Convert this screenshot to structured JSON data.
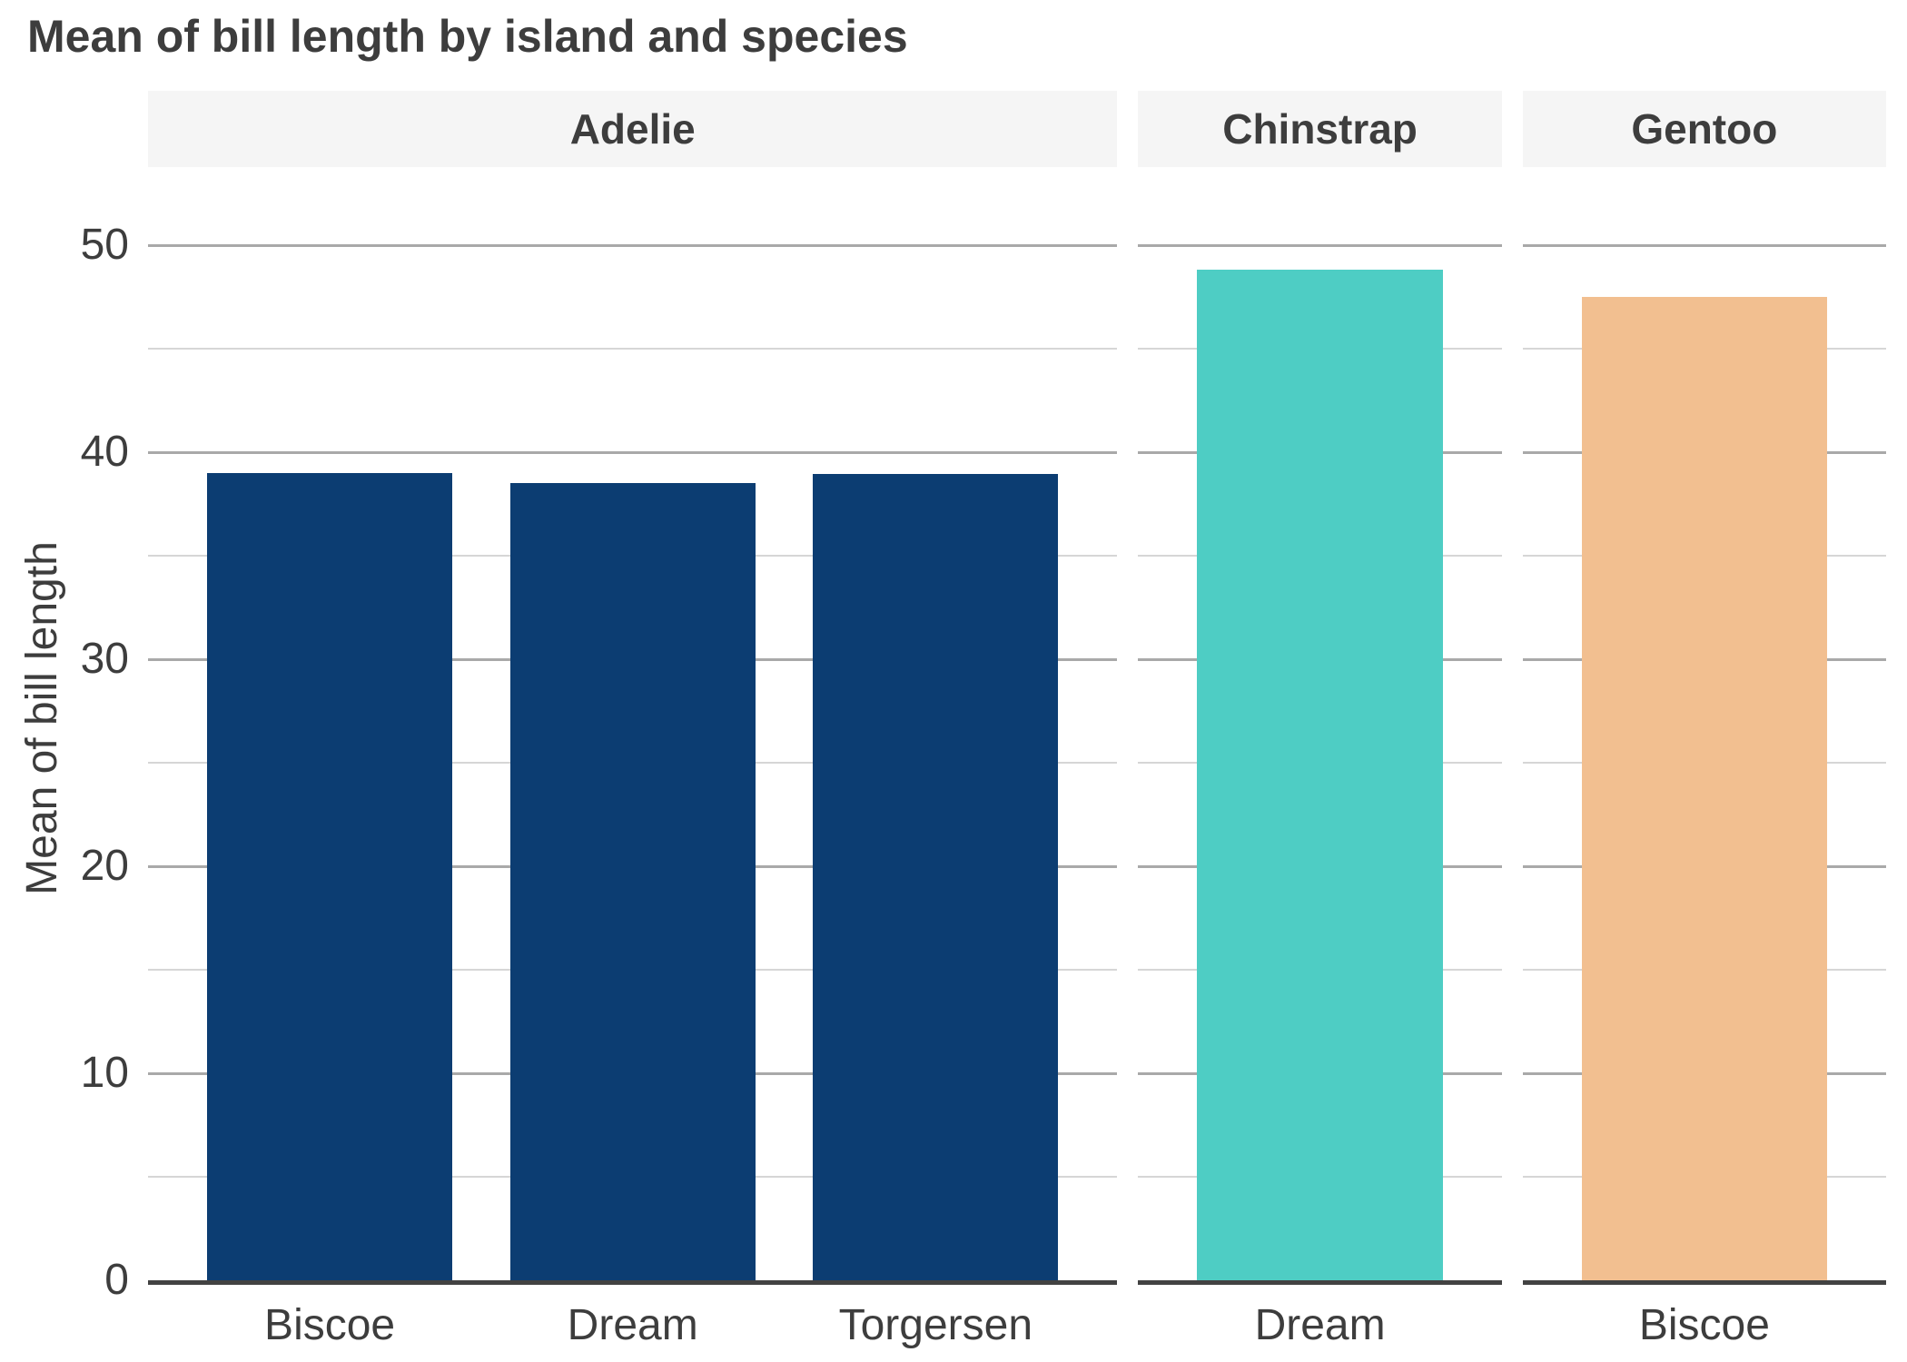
{
  "chart_data": {
    "type": "bar",
    "title": "Mean of bill length by island and species",
    "ylabel": "Mean of bill length",
    "xlabel": "",
    "facet_variable": "species",
    "x_variable": "island",
    "ylim": [
      0,
      53.8
    ],
    "yticks": [
      0,
      10,
      20,
      30,
      40,
      50
    ],
    "yticks_minor": [
      5,
      15,
      25,
      35,
      45
    ],
    "grid": "horizontal major+minor, no vertical gridlines",
    "legend": "none",
    "facets": [
      {
        "label": "Adelie",
        "color": "#0C3D72",
        "categories": [
          "Biscoe",
          "Dream",
          "Torgersen"
        ],
        "values": [
          38.98,
          38.5,
          38.95
        ]
      },
      {
        "label": "Chinstrap",
        "color": "#4ECDC4",
        "categories": [
          "Dream"
        ],
        "values": [
          48.83
        ]
      },
      {
        "label": "Gentoo",
        "color": "#F2BF90",
        "categories": [
          "Biscoe"
        ],
        "values": [
          47.5
        ]
      }
    ],
    "colors": {
      "background": "#FFFFFF",
      "text": "#3D3D3D",
      "strip_background": "#F5F5F5",
      "grid_major": "#A9A9A9",
      "grid_minor": "#D6D6D6",
      "axis_line": "#424242"
    }
  }
}
